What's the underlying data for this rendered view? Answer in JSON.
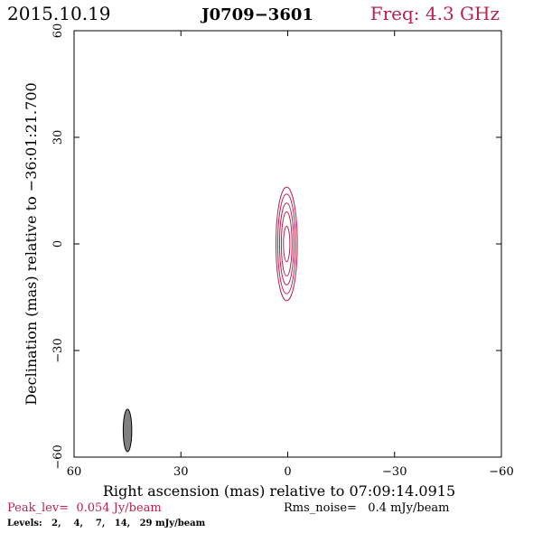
{
  "header": {
    "date": "2015.10.19",
    "source": "J0709−3601",
    "freq": "Freq: 4.3 GHz"
  },
  "colors": {
    "contour": "#b5234e",
    "text_accent": "#b5234e",
    "beam_fill": "#808080",
    "axis": "#000000"
  },
  "footer": {
    "peak": "Peak_lev=  0.054 Jy/beam",
    "noise": "Rms_noise=   0.4 mJy/beam",
    "levels": "Levels:   2,    4,    7,   14,   29 mJy/beam"
  },
  "chart_data": {
    "type": "contour",
    "xlabel": "Right ascension (mas) relative to 07:09:14.0915",
    "ylabel": "Declination (mas) relative to −36:01:21.700",
    "xlim": [
      60,
      -60
    ],
    "ylim": [
      -60,
      60
    ],
    "x_ticks": [
      {
        "value": 60,
        "label": "60"
      },
      {
        "value": 30,
        "label": "30"
      },
      {
        "value": 0,
        "label": "0"
      },
      {
        "value": -30,
        "label": "−30"
      },
      {
        "value": -60,
        "label": "−60"
      }
    ],
    "y_ticks": [
      {
        "value": -60,
        "label": "−60"
      },
      {
        "value": -30,
        "label": "−30"
      },
      {
        "value": 0,
        "label": "0"
      },
      {
        "value": 30,
        "label": "30"
      },
      {
        "value": 60,
        "label": "60"
      }
    ],
    "contour_levels_mjy": [
      2,
      4,
      7,
      14,
      29
    ],
    "contours": [
      {
        "level": 2,
        "cx": 0.3,
        "cy": 0,
        "rx": 3.0,
        "ry": 16.0
      },
      {
        "level": 4,
        "cx": 0.3,
        "cy": 0,
        "rx": 2.5,
        "ry": 14.0
      },
      {
        "level": 7,
        "cx": 0.3,
        "cy": 0,
        "rx": 2.0,
        "ry": 11.5
      },
      {
        "level": 14,
        "cx": 0.3,
        "cy": 0,
        "rx": 1.5,
        "ry": 9.0
      },
      {
        "level": 29,
        "cx": 0.3,
        "cy": 0,
        "rx": 0.9,
        "ry": 5.0
      }
    ],
    "beam": {
      "cx": 45,
      "cy": -52.5,
      "rx": 1.2,
      "ry": 6.0,
      "angle_deg": 0
    },
    "peak_jy_per_beam": 0.054,
    "rms_noise_mjy_per_beam": 0.4
  }
}
